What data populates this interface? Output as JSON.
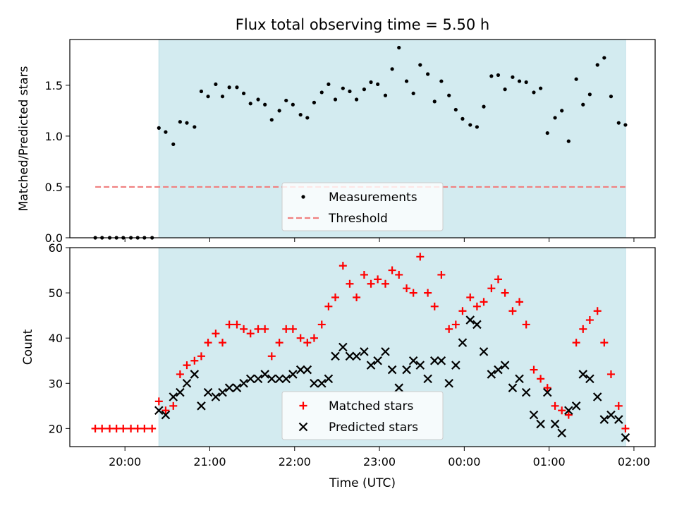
{
  "title": "Flux total observing time = 5.50 h",
  "chart_data": [
    {
      "type": "scatter",
      "panel": "top",
      "ylabel": "Matched/Predicted stars",
      "xlabel": "",
      "ylim": [
        0,
        1.95
      ],
      "xlim_hours": [
        19.35,
        26.25
      ],
      "yticks": [
        "0.0",
        "0.5",
        "1.0",
        "1.5"
      ],
      "ytick_values": [
        0.0,
        0.5,
        1.0,
        1.5
      ],
      "shaded_span_hours": [
        20.4,
        25.9
      ],
      "shade_color": "#d3ebf0",
      "threshold": {
        "name": "Threshold",
        "value": 0.5,
        "x_range_hours": [
          19.65,
          25.9
        ],
        "color": "#f08080"
      },
      "series": [
        {
          "name": "Measurements",
          "color": "#000000",
          "x_hours": [
            19.65,
            19.73,
            19.82,
            19.9,
            19.98,
            20.07,
            20.15,
            20.23,
            20.32,
            20.4,
            20.48,
            20.57,
            20.65,
            20.73,
            20.82,
            20.9,
            20.98,
            21.07,
            21.15,
            21.23,
            21.32,
            21.4,
            21.48,
            21.57,
            21.65,
            21.73,
            21.82,
            21.9,
            21.98,
            22.07,
            22.15,
            22.23,
            22.32,
            22.4,
            22.48,
            22.57,
            22.65,
            22.73,
            22.82,
            22.9,
            22.98,
            23.07,
            23.15,
            23.23,
            23.32,
            23.4,
            23.48,
            23.57,
            23.65,
            23.73,
            23.82,
            23.9,
            23.98,
            24.07,
            24.15,
            24.23,
            24.32,
            24.4,
            24.48,
            24.57,
            24.65,
            24.73,
            24.82,
            24.9,
            24.98,
            25.07,
            25.15,
            25.23,
            25.32,
            25.4,
            25.48,
            25.57,
            25.65,
            25.73,
            25.82,
            25.9
          ],
          "y": [
            0,
            0,
            0,
            0,
            0,
            0,
            0,
            0,
            0,
            1.08,
            1.04,
            0.92,
            1.14,
            1.13,
            1.09,
            1.44,
            1.39,
            1.51,
            1.39,
            1.48,
            1.48,
            1.42,
            1.32,
            1.36,
            1.31,
            1.16,
            1.25,
            1.35,
            1.31,
            1.21,
            1.18,
            1.33,
            1.43,
            1.51,
            1.36,
            1.47,
            1.44,
            1.36,
            1.46,
            1.53,
            1.51,
            1.4,
            1.66,
            1.87,
            1.54,
            1.42,
            1.7,
            1.61,
            1.34,
            1.54,
            1.4,
            1.26,
            1.17,
            1.11,
            1.09,
            1.29,
            1.59,
            1.6,
            1.46,
            1.58,
            1.54,
            1.53,
            1.43,
            1.47,
            1.03,
            1.18,
            1.25,
            0.95,
            1.56,
            1.31,
            1.41,
            1.7,
            1.77,
            1.39,
            1.13,
            1.11
          ]
        }
      ],
      "legend": {
        "placement": "lower-center",
        "entries": [
          "Measurements",
          "Threshold"
        ]
      }
    },
    {
      "type": "scatter",
      "panel": "bottom",
      "ylabel": "Count",
      "xlabel": "Time (UTC)",
      "ylim": [
        16,
        60
      ],
      "xlim_hours": [
        19.35,
        26.25
      ],
      "yticks": [
        "20",
        "30",
        "40",
        "50",
        "60"
      ],
      "ytick_values": [
        20,
        30,
        40,
        50,
        60
      ],
      "xticks": [
        "20:00",
        "21:00",
        "22:00",
        "23:00",
        "00:00",
        "01:00",
        "02:00"
      ],
      "xtick_hours": [
        20,
        21,
        22,
        23,
        24,
        25,
        26
      ],
      "shaded_span_hours": [
        20.4,
        25.9
      ],
      "shade_color": "#d3ebf0",
      "series": [
        {
          "name": "Matched stars",
          "marker": "plus",
          "color": "#ff0000",
          "x_hours": [
            19.65,
            19.73,
            19.82,
            19.9,
            19.98,
            20.07,
            20.15,
            20.23,
            20.32,
            20.4,
            20.48,
            20.57,
            20.65,
            20.73,
            20.82,
            20.9,
            20.98,
            21.07,
            21.15,
            21.23,
            21.32,
            21.4,
            21.48,
            21.57,
            21.65,
            21.73,
            21.82,
            21.9,
            21.98,
            22.07,
            22.15,
            22.23,
            22.32,
            22.4,
            22.48,
            22.57,
            22.65,
            22.73,
            22.82,
            22.9,
            22.98,
            23.07,
            23.15,
            23.23,
            23.32,
            23.4,
            23.48,
            23.57,
            23.65,
            23.73,
            23.82,
            23.9,
            23.98,
            24.07,
            24.15,
            24.23,
            24.32,
            24.4,
            24.48,
            24.57,
            24.65,
            24.73,
            24.82,
            24.9,
            24.98,
            25.07,
            25.15,
            25.23,
            25.32,
            25.4,
            25.48,
            25.57,
            25.65,
            25.73,
            25.82,
            25.9
          ],
          "y": [
            20,
            20,
            20,
            20,
            20,
            20,
            20,
            20,
            20,
            26,
            24,
            25,
            32,
            34,
            35,
            36,
            39,
            41,
            39,
            43,
            43,
            42,
            41,
            42,
            42,
            36,
            39,
            42,
            42,
            40,
            39,
            40,
            43,
            47,
            49,
            56,
            52,
            49,
            54,
            52,
            53,
            52,
            55,
            54,
            51,
            50,
            58,
            50,
            47,
            54,
            42,
            43,
            46,
            49,
            47,
            48,
            51,
            53,
            50,
            46,
            48,
            43,
            33,
            31,
            29,
            25,
            24,
            23,
            39,
            42,
            44,
            46,
            39,
            32,
            25,
            20
          ]
        },
        {
          "name": "Predicted stars",
          "marker": "x",
          "color": "#000000",
          "x_hours": [
            20.4,
            20.48,
            20.57,
            20.65,
            20.73,
            20.82,
            20.9,
            20.98,
            21.07,
            21.15,
            21.23,
            21.32,
            21.4,
            21.48,
            21.57,
            21.65,
            21.73,
            21.82,
            21.9,
            21.98,
            22.07,
            22.15,
            22.23,
            22.32,
            22.4,
            22.48,
            22.57,
            22.65,
            22.73,
            22.82,
            22.9,
            22.98,
            23.07,
            23.15,
            23.23,
            23.32,
            23.4,
            23.48,
            23.57,
            23.65,
            23.73,
            23.82,
            23.9,
            23.98,
            24.07,
            24.15,
            24.23,
            24.32,
            24.4,
            24.48,
            24.57,
            24.65,
            24.73,
            24.82,
            24.9,
            24.98,
            25.07,
            25.15,
            25.23,
            25.32,
            25.4,
            25.48,
            25.57,
            25.65,
            25.73,
            25.82,
            25.9
          ],
          "y": [
            24,
            23,
            27,
            28,
            30,
            32,
            25,
            28,
            27,
            28,
            29,
            29,
            30,
            31,
            31,
            32,
            31,
            31,
            31,
            32,
            33,
            33,
            30,
            30,
            31,
            36,
            38,
            36,
            36,
            37,
            34,
            35,
            37,
            33,
            29,
            33,
            35,
            34,
            31,
            35,
            35,
            30,
            34,
            39,
            44,
            43,
            37,
            32,
            33,
            34,
            29,
            31,
            28,
            23,
            21,
            28,
            21,
            19,
            24,
            25,
            32,
            31,
            27,
            22,
            23,
            22,
            18
          ]
        }
      ],
      "legend": {
        "placement": "lower-center",
        "entries": [
          "Matched stars",
          "Predicted stars"
        ]
      }
    }
  ]
}
